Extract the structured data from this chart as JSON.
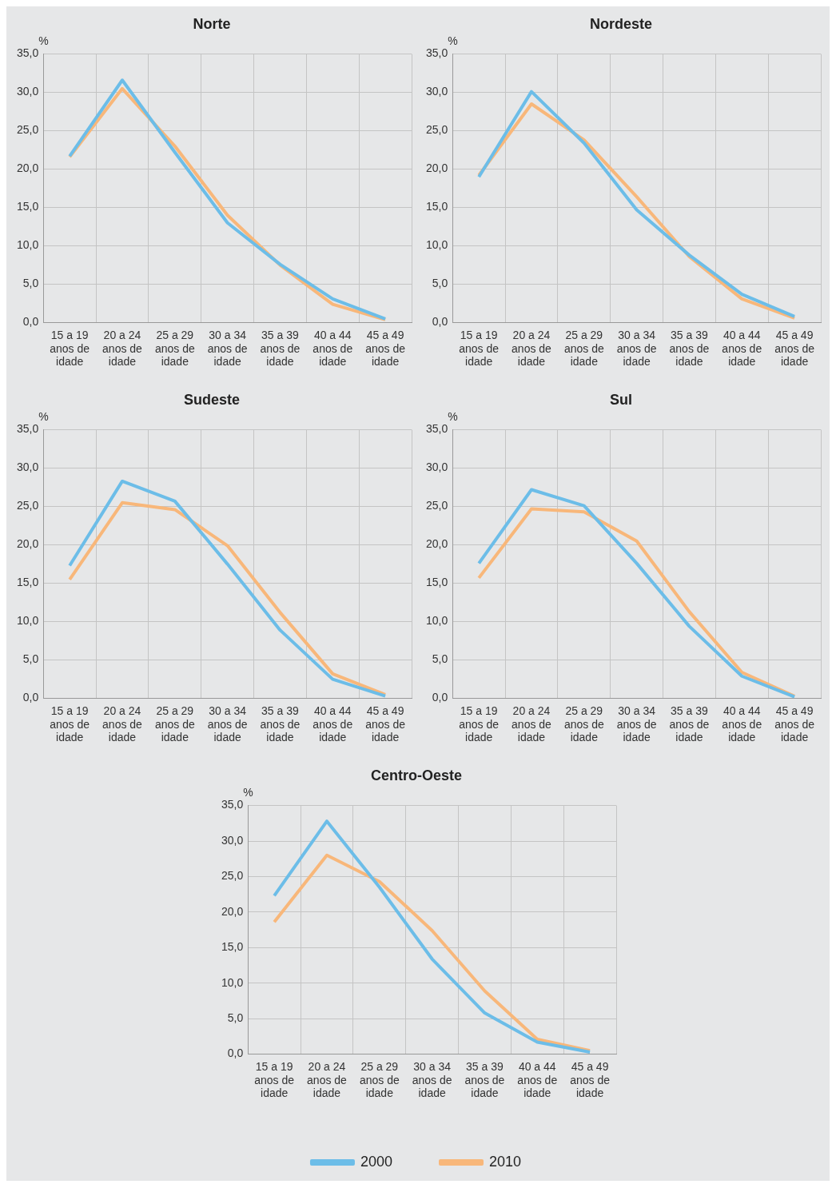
{
  "chart_data": [
    {
      "type": "line",
      "title": "Norte",
      "ylabel": "%",
      "categories": [
        "15 a 19 anos de idade",
        "20 a 24 anos de idade",
        "25 a 29 anos de idade",
        "30 a 34 anos de idade",
        "35 a 39 anos de idade",
        "40 a 44 anos de idade",
        "45 a 49 anos de idade"
      ],
      "series": [
        {
          "color": "#6cbde8",
          "values": [
            21.7,
            31.6,
            22.2,
            13.0,
            7.6,
            3.1,
            0.5
          ]
        },
        {
          "color": "#f8b77a",
          "values": [
            21.6,
            30.5,
            23.0,
            14.0,
            7.5,
            2.4,
            0.4
          ]
        }
      ],
      "ylim": [
        0,
        35
      ],
      "yticks": [
        {
          "value": 0,
          "label": "0,0"
        },
        {
          "value": 5,
          "label": "5,0"
        },
        {
          "value": 10,
          "label": "10,0"
        },
        {
          "value": 15,
          "label": "15,0"
        },
        {
          "value": 20,
          "label": "20,0"
        },
        {
          "value": 25,
          "label": "25,0"
        },
        {
          "value": 30,
          "label": "30,0"
        },
        {
          "value": 35,
          "label": "35,0"
        }
      ],
      "grid": true
    },
    {
      "type": "line",
      "title": "Nordeste",
      "ylabel": "%",
      "categories": [
        "15 a 19 anos de idade",
        "20 a 24 anos de idade",
        "25 a 29 anos de idade",
        "30 a 34 anos de idade",
        "35 a 39 anos de idade",
        "40 a 44 anos de idade",
        "45 a 49 anos de idade"
      ],
      "series": [
        {
          "color": "#6cbde8",
          "values": [
            19.0,
            30.1,
            23.4,
            14.7,
            8.8,
            3.7,
            0.8
          ]
        },
        {
          "color": "#f8b77a",
          "values": [
            19.2,
            28.5,
            23.8,
            16.4,
            8.6,
            3.1,
            0.6
          ]
        }
      ],
      "ylim": [
        0,
        35
      ],
      "yticks": [
        {
          "value": 0,
          "label": "0,0"
        },
        {
          "value": 5,
          "label": "5,0"
        },
        {
          "value": 10,
          "label": "10,0"
        },
        {
          "value": 15,
          "label": "15,0"
        },
        {
          "value": 20,
          "label": "20,0"
        },
        {
          "value": 25,
          "label": "25,0"
        },
        {
          "value": 30,
          "label": "30,0"
        },
        {
          "value": 35,
          "label": "35,0"
        }
      ],
      "grid": true
    },
    {
      "type": "line",
      "title": "Sudeste",
      "ylabel": "%",
      "categories": [
        "15 a 19 anos de idade",
        "20 a 24 anos de idade",
        "25 a 29 anos de idade",
        "30 a 34 anos de idade",
        "35 a 39 anos de idade",
        "40 a 44 anos de idade",
        "45 a 49 anos de idade"
      ],
      "series": [
        {
          "color": "#6cbde8",
          "values": [
            17.3,
            28.3,
            25.7,
            17.5,
            8.9,
            2.5,
            0.3
          ]
        },
        {
          "color": "#f8b77a",
          "values": [
            15.5,
            25.5,
            24.6,
            19.9,
            11.2,
            3.2,
            0.5
          ]
        }
      ],
      "ylim": [
        0,
        35
      ],
      "yticks": [
        {
          "value": 0,
          "label": "0,0"
        },
        {
          "value": 5,
          "label": "5,0"
        },
        {
          "value": 10,
          "label": "10,0"
        },
        {
          "value": 15,
          "label": "15,0"
        },
        {
          "value": 20,
          "label": "20,0"
        },
        {
          "value": 25,
          "label": "25,0"
        },
        {
          "value": 30,
          "label": "30,0"
        },
        {
          "value": 35,
          "label": "35,0"
        }
      ],
      "grid": true
    },
    {
      "type": "line",
      "title": "Sul",
      "ylabel": "%",
      "categories": [
        "15 a 19 anos de idade",
        "20 a 24 anos de idade",
        "25 a 29 anos de idade",
        "30 a 34 anos de idade",
        "35 a 39 anos de idade",
        "40 a 44 anos de idade",
        "45 a 49 anos de idade"
      ],
      "series": [
        {
          "color": "#6cbde8",
          "values": [
            17.6,
            27.2,
            25.1,
            17.6,
            9.4,
            2.9,
            0.2
          ]
        },
        {
          "color": "#f8b77a",
          "values": [
            15.7,
            24.7,
            24.3,
            20.5,
            11.3,
            3.4,
            0.3
          ]
        }
      ],
      "ylim": [
        0,
        35
      ],
      "yticks": [
        {
          "value": 0,
          "label": "0,0"
        },
        {
          "value": 5,
          "label": "5,0"
        },
        {
          "value": 10,
          "label": "10,0"
        },
        {
          "value": 15,
          "label": "15,0"
        },
        {
          "value": 20,
          "label": "20,0"
        },
        {
          "value": 25,
          "label": "25,0"
        },
        {
          "value": 30,
          "label": "30,0"
        },
        {
          "value": 35,
          "label": "35,0"
        }
      ],
      "grid": true
    },
    {
      "type": "line",
      "title": "Centro-Oeste",
      "ylabel": "%",
      "categories": [
        "15 a 19 anos de idade",
        "20 a 24 anos de idade",
        "25 a 29 anos de idade",
        "30 a 34 anos de idade",
        "35 a 39 anos de idade",
        "40 a 44 anos de idade",
        "45 a 49 anos de idade"
      ],
      "series": [
        {
          "name": "2000",
          "color": "#6cbde8",
          "values": [
            22.3,
            32.8,
            23.5,
            13.4,
            5.8,
            1.7,
            0.3
          ]
        },
        {
          "name": "2010",
          "color": "#f8b77a",
          "values": [
            18.6,
            28.0,
            24.3,
            17.4,
            8.9,
            2.1,
            0.5
          ]
        }
      ],
      "ylim": [
        0,
        35
      ],
      "yticks": [
        {
          "value": 0,
          "label": "0,0"
        },
        {
          "value": 5,
          "label": "5,0"
        },
        {
          "value": 10,
          "label": "10,0"
        },
        {
          "value": 15,
          "label": "15,0"
        },
        {
          "value": 20,
          "label": "20,0"
        },
        {
          "value": 25,
          "label": "25,0"
        },
        {
          "value": 30,
          "label": "30,0"
        },
        {
          "value": 35,
          "label": "35,0"
        }
      ],
      "grid": true,
      "legend": "bottom"
    }
  ]
}
